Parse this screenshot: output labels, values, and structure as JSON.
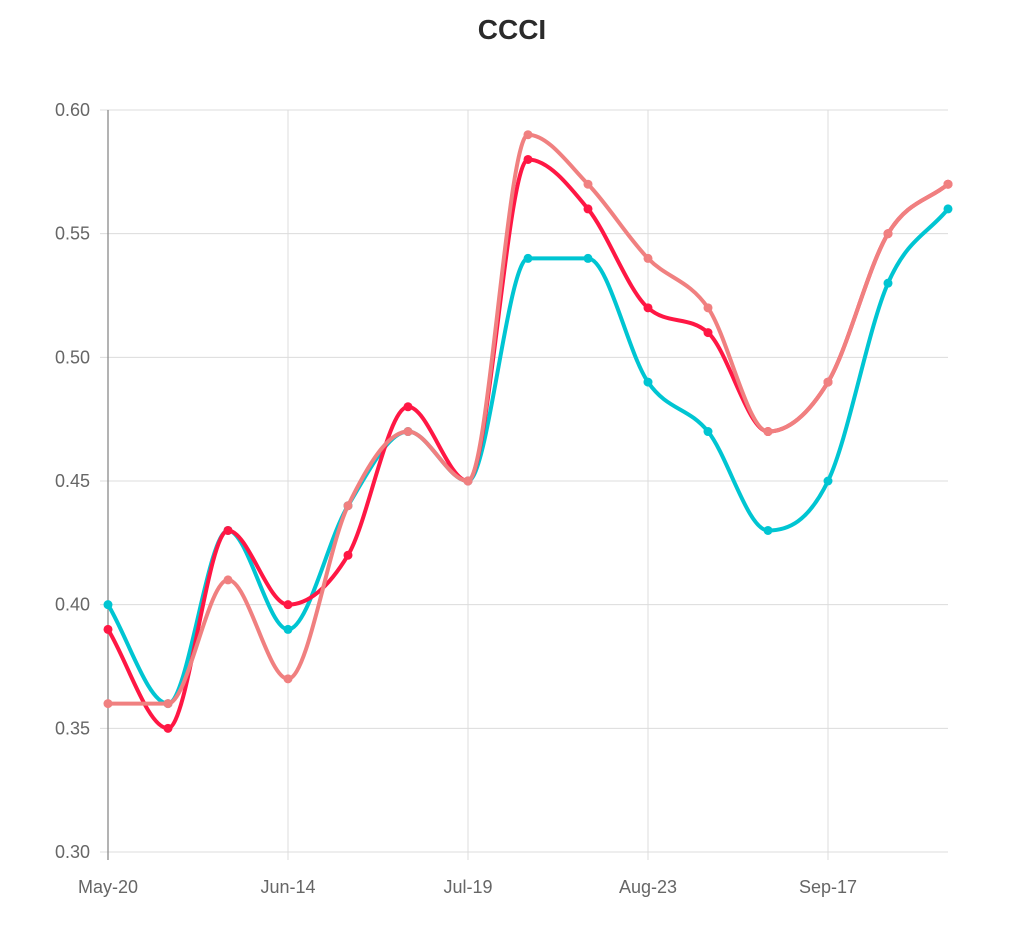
{
  "chart_data": {
    "type": "line",
    "title": "CCCI",
    "x_tick_labels": [
      "May-20",
      "Jun-14",
      "Jul-19",
      "Aug-23",
      "Sep-17"
    ],
    "y_tick_labels": [
      "0.30",
      "0.35",
      "0.40",
      "0.45",
      "0.50",
      "0.55",
      "0.60"
    ],
    "ylim": [
      0.3,
      0.6
    ],
    "grid": true,
    "legend": "none",
    "series": [
      {
        "color": "#00c5d2",
        "values": [
          0.4,
          0.36,
          0.43,
          0.39,
          0.44,
          0.47,
          0.45,
          0.54,
          0.54,
          0.49,
          0.47,
          0.43,
          0.45,
          0.53,
          0.56
        ]
      },
      {
        "color": "#ff1744",
        "values": [
          0.39,
          0.35,
          0.43,
          0.4,
          0.42,
          0.48,
          0.45,
          0.58,
          0.56,
          0.52,
          0.51,
          0.47,
          0.49,
          0.55,
          0.57
        ]
      },
      {
        "color": "#f08080",
        "values": [
          0.36,
          0.36,
          0.41,
          0.37,
          0.44,
          0.47,
          0.45,
          0.59,
          0.57,
          0.54,
          0.52,
          0.47,
          0.49,
          0.55,
          0.57
        ]
      }
    ]
  }
}
